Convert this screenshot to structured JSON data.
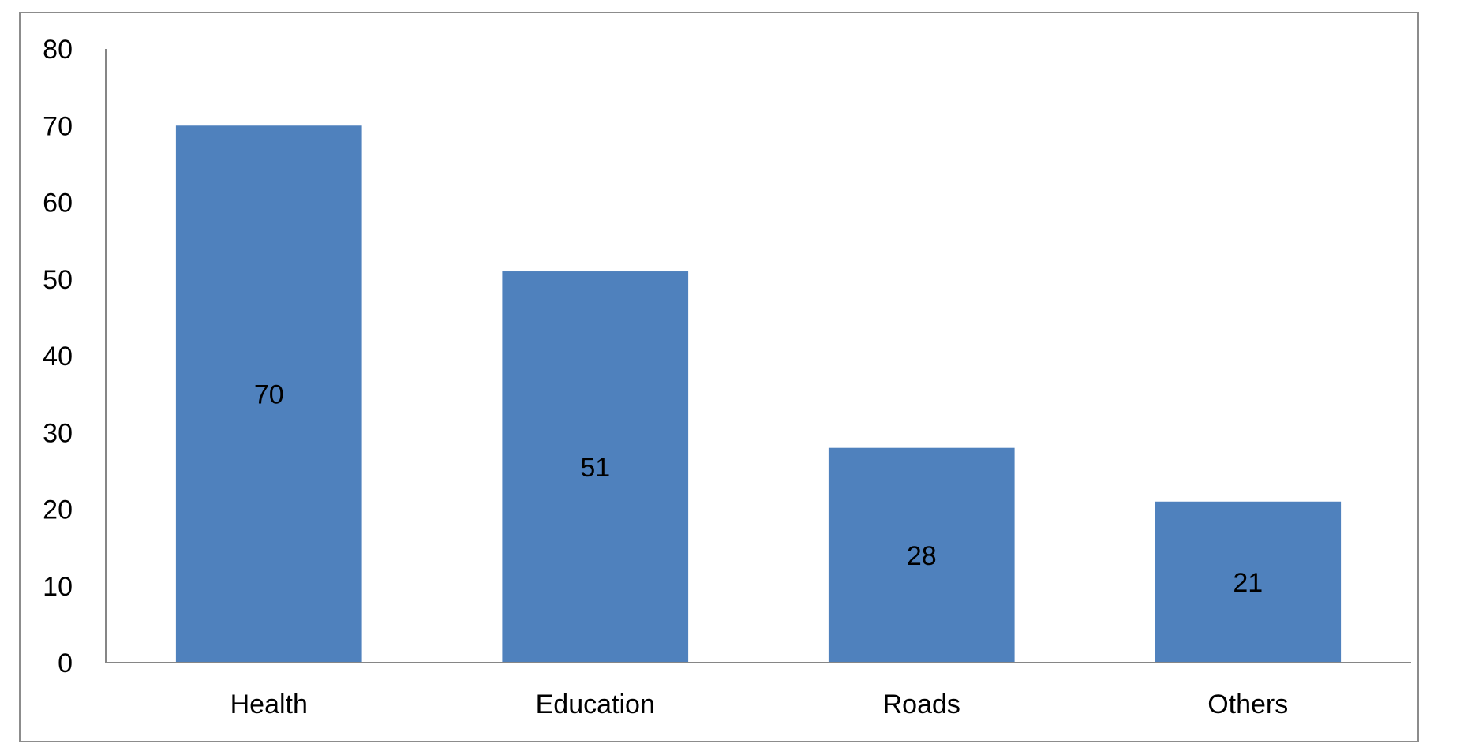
{
  "chart_data": {
    "type": "bar",
    "categories": [
      "Health",
      "Education",
      "Roads",
      "Others"
    ],
    "values": [
      70,
      51,
      28,
      21
    ],
    "data_labels": [
      "70",
      "51",
      "28",
      "21"
    ],
    "title": "",
    "xlabel": "",
    "ylabel": "",
    "ylim": [
      0,
      80
    ],
    "y_ticks": [
      "0",
      "10",
      "20",
      "30",
      "40",
      "50",
      "60",
      "70",
      "80"
    ],
    "grid": false,
    "legend": "none",
    "colors": {
      "bar": "#4f81bd",
      "axis": "#868686",
      "frame": "#8c8c8c"
    }
  }
}
